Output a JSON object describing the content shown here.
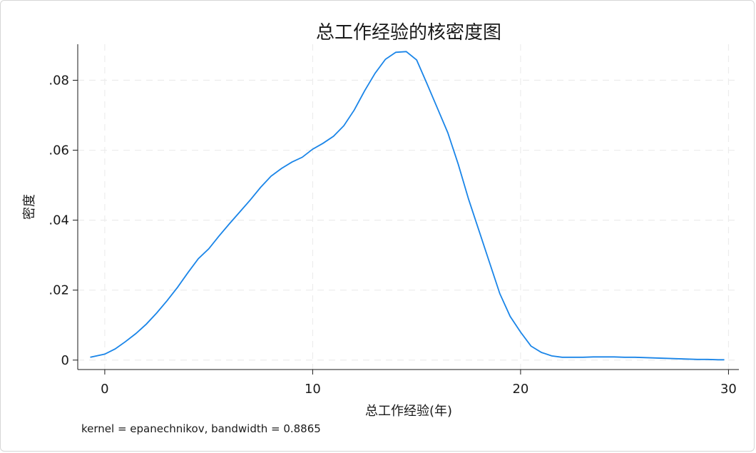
{
  "chart_data": {
    "type": "line",
    "title": "总工作经验的核密度图",
    "xlabel": "总工作经验(年)",
    "ylabel": "密度",
    "note": "kernel = epanechnikov, bandwidth = 0.8865",
    "xlim": [
      -1.3,
      30.5
    ],
    "ylim": [
      -0.0027,
      0.0903
    ],
    "x_ticks": [
      0,
      10,
      20,
      30
    ],
    "x_tick_labels": [
      "0",
      "10",
      "20",
      "30"
    ],
    "y_ticks": [
      0,
      0.02,
      0.04,
      0.06,
      0.08
    ],
    "y_tick_labels": [
      "0",
      ".02",
      ".04",
      ".06",
      ".08"
    ],
    "grid": true,
    "line_color": "#1a85e8",
    "series": [
      {
        "x": [
          -0.7,
          0,
          0.5,
          1,
          1.5,
          2,
          2.5,
          3,
          3.5,
          4,
          4.5,
          5,
          5.5,
          6,
          6.5,
          7,
          7.5,
          8,
          8.5,
          9,
          9.5,
          10,
          10.5,
          11,
          11.5,
          12,
          12.5,
          13,
          13.5,
          14,
          14.5,
          15,
          15.5,
          16,
          16.5,
          17,
          17.5,
          18,
          18.5,
          19,
          19.5,
          20,
          20.5,
          21,
          21.5,
          22,
          22.5,
          23,
          23.5,
          24,
          24.5,
          25,
          25.5,
          26,
          26.5,
          27,
          27.5,
          28,
          28.5,
          29,
          29.5,
          29.8
        ],
        "y": [
          0.0008,
          0.0017,
          0.0032,
          0.0053,
          0.0076,
          0.0103,
          0.0135,
          0.017,
          0.0208,
          0.025,
          0.029,
          0.0318,
          0.0355,
          0.039,
          0.0424,
          0.0458,
          0.0494,
          0.0526,
          0.0548,
          0.0566,
          0.058,
          0.0603,
          0.062,
          0.064,
          0.067,
          0.0715,
          0.077,
          0.082,
          0.086,
          0.088,
          0.0882,
          0.0858,
          0.079,
          0.072,
          0.065,
          0.056,
          0.046,
          0.037,
          0.028,
          0.019,
          0.0125,
          0.008,
          0.004,
          0.0022,
          0.0012,
          0.0008,
          0.0008,
          0.0008,
          0.0009,
          0.0009,
          0.0009,
          0.0008,
          0.0008,
          0.0007,
          0.0006,
          0.0005,
          0.0004,
          0.0003,
          0.0002,
          0.0002,
          0.0001,
          0.0001
        ]
      }
    ]
  }
}
